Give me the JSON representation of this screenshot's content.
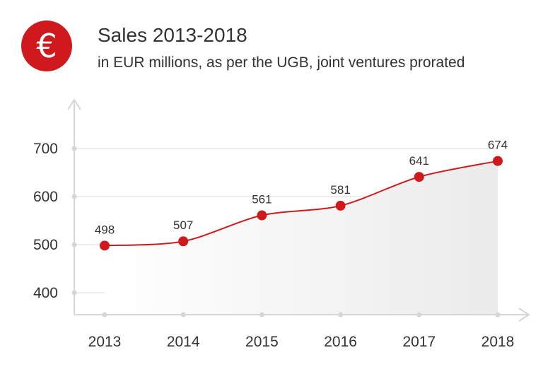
{
  "header": {
    "icon": "euro-icon",
    "icon_glyph": "€",
    "title": "Sales 2013-2018",
    "subtitle": "in EUR millions, as per the UGB, joint ventures prorated"
  },
  "chart_data": {
    "type": "line",
    "title": "Sales 2013-2018",
    "subtitle": "in EUR millions, as per the UGB, joint ventures prorated",
    "categories": [
      "2013",
      "2014",
      "2015",
      "2016",
      "2017",
      "2018"
    ],
    "values": [
      498,
      507,
      561,
      581,
      641,
      674
    ],
    "data_labels": [
      "498",
      "507",
      "561",
      "581",
      "641",
      "674"
    ],
    "yticks": [
      400,
      500,
      600,
      700
    ],
    "ytick_labels": [
      "400",
      "500",
      "600",
      "700"
    ],
    "ylim": [
      352,
      790
    ],
    "grid": true,
    "area_fill": true,
    "legend": "none",
    "colors": {
      "line": "#d0191c",
      "marker": "#d0191c",
      "axis": "#d6d6d6",
      "grid": "#e2e2e2",
      "text": "#333333"
    }
  }
}
